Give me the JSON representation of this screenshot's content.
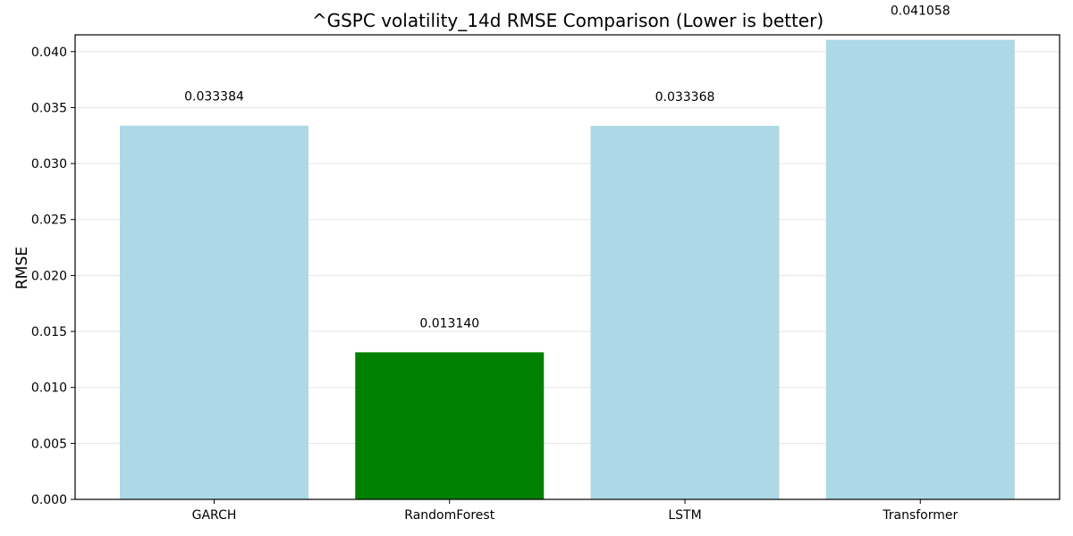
{
  "chart_data": {
    "type": "bar",
    "title": "^GSPC volatility_14d RMSE Comparison (Lower is better)",
    "xlabel": "",
    "ylabel": "RMSE",
    "categories": [
      "GARCH",
      "RandomForest",
      "LSTM",
      "Transformer"
    ],
    "values": [
      0.033384,
      0.01314,
      0.033368,
      0.041058
    ],
    "data_labels": [
      "0.033384",
      "0.013140",
      "0.033368",
      "0.041058"
    ],
    "colors": [
      "#add8e6",
      "#008000",
      "#add8e6",
      "#add8e6"
    ],
    "ylim": [
      0,
      0.0415
    ],
    "yticks": [
      0.0,
      0.005,
      0.01,
      0.015,
      0.02,
      0.025,
      0.03,
      0.035,
      0.04
    ],
    "ytick_labels": [
      "0.000",
      "0.005",
      "0.010",
      "0.015",
      "0.020",
      "0.025",
      "0.030",
      "0.035",
      "0.040"
    ],
    "grid": "y",
    "legend": "none"
  }
}
